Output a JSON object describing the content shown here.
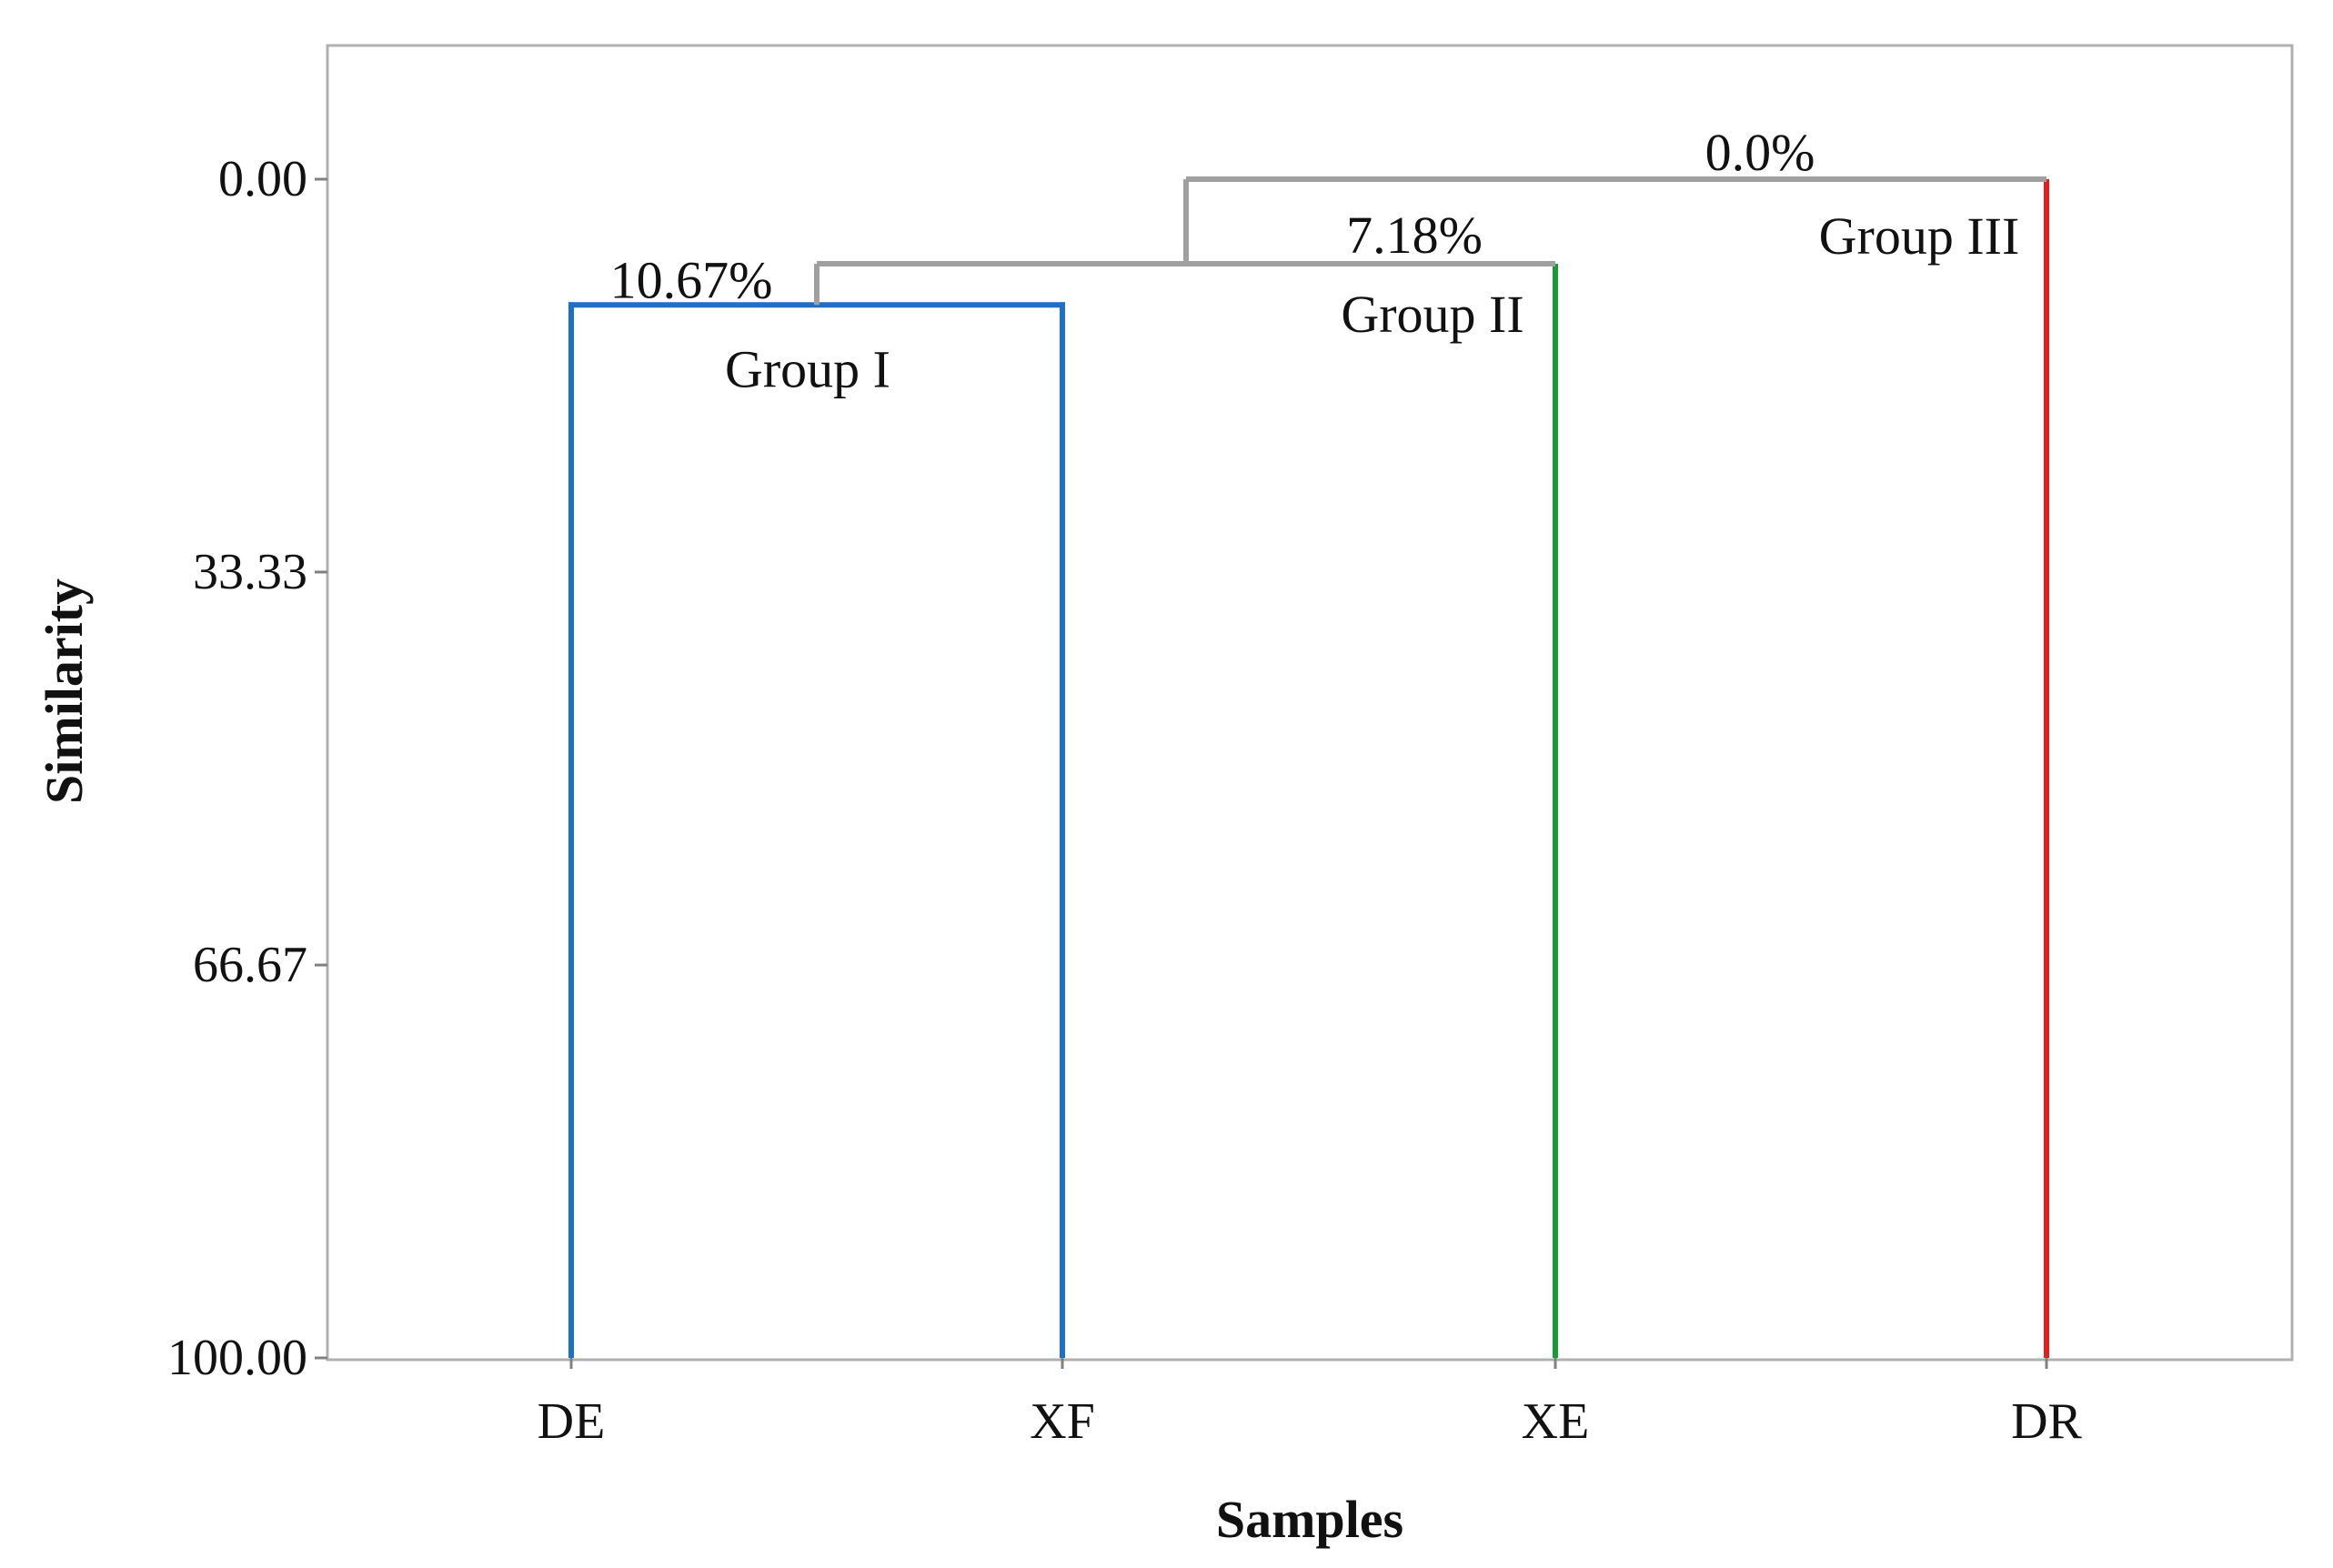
{
  "chart_data": {
    "type": "dendrogram",
    "xlabel": "Samples",
    "ylabel": "Similarity",
    "ylim": [
      0,
      100
    ],
    "y_inverted": true,
    "yticks": [
      "0.00",
      "33.33",
      "66.67",
      "100.00"
    ],
    "ytick_values": [
      0,
      33.33,
      66.67,
      100
    ],
    "leaves": [
      "DE",
      "XF",
      "XE",
      "DR"
    ],
    "grid": false,
    "frame": true,
    "links": [
      {
        "left": "DE",
        "right": "XF",
        "similarity": 10.67,
        "label": "10.67%",
        "color": "#1f6fc4"
      },
      {
        "left": "DE+XF",
        "right": "XE",
        "similarity": 7.18,
        "label": "7.18%",
        "color": "#a0a0a0"
      },
      {
        "left": "DE+XF+XE",
        "right": "DR",
        "similarity": 0.0,
        "label": "0.0%",
        "color": "#a0a0a0"
      }
    ],
    "leaf_colors": {
      "DE": "#1f6fc4",
      "XF": "#1f6fc4",
      "XE": "#1a9a3a",
      "DR": "#e02020"
    },
    "groups": [
      {
        "label": "Group I",
        "color": "#1f6fc4"
      },
      {
        "label": "Group II",
        "color": "#1a9a3a"
      },
      {
        "label": "Group III",
        "color": "#e02020"
      }
    ]
  }
}
